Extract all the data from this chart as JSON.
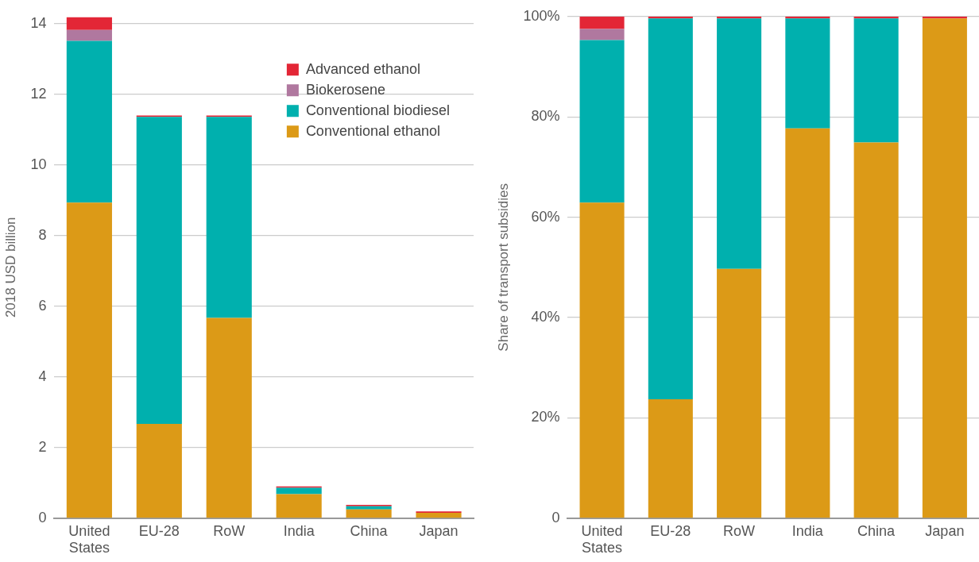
{
  "chart_data": [
    {
      "type": "bar",
      "stacked": true,
      "ylabel": "2018 USD billion",
      "categories": [
        "United States",
        "EU-28",
        "RoW",
        "India",
        "China",
        "Japan"
      ],
      "series": [
        {
          "name": "Conventional ethanol",
          "color": "#dc9a17",
          "values": [
            8.93,
            2.67,
            5.67,
            0.68,
            0.25,
            0.15
          ]
        },
        {
          "name": "Conventional biodiesel",
          "color": "#00b0ae",
          "values": [
            4.58,
            8.69,
            5.69,
            0.18,
            0.09,
            0
          ]
        },
        {
          "name": "Biokerosene",
          "color": "#b0789f",
          "values": [
            0.31,
            0,
            0,
            0,
            0,
            0
          ]
        },
        {
          "name": "Advanced ethanol",
          "color": "#e32636",
          "values": [
            0.36,
            0.04,
            0.04,
            0.04,
            0.04,
            0.04
          ]
        }
      ],
      "ylim": [
        0,
        14.2
      ],
      "yticks": [
        0,
        2,
        4,
        6,
        8,
        10,
        12,
        14
      ],
      "grid": "y",
      "legend": "top right"
    },
    {
      "type": "bar",
      "stacked": true,
      "ylabel": "Share of transport subsidies",
      "categories": [
        "United States",
        "EU-28",
        "RoW",
        "India",
        "China",
        "Japan"
      ],
      "series": [
        {
          "color": "#dc9a17",
          "values": [
            62.9,
            23.7,
            49.7,
            77.7,
            74.9,
            99.6
          ]
        },
        {
          "color": "#00b0ae",
          "values": [
            32.4,
            75.9,
            49.9,
            21.9,
            24.7,
            0
          ]
        },
        {
          "color": "#b0789f",
          "values": [
            2.2,
            0,
            0,
            0,
            0,
            0
          ]
        },
        {
          "color": "#e32636",
          "values": [
            2.5,
            0.4,
            0.4,
            0.4,
            0.4,
            0.4
          ]
        }
      ],
      "ylim": [
        0,
        100
      ],
      "yticks": [
        0,
        {
          "value": 20,
          "label": "20%"
        },
        {
          "value": 40,
          "label": "40%"
        },
        {
          "value": 60,
          "label": "60%"
        },
        {
          "value": 80,
          "label": "80%"
        },
        {
          "value": 100,
          "label": "100%"
        }
      ],
      "grid": "y",
      "legend": false
    }
  ]
}
